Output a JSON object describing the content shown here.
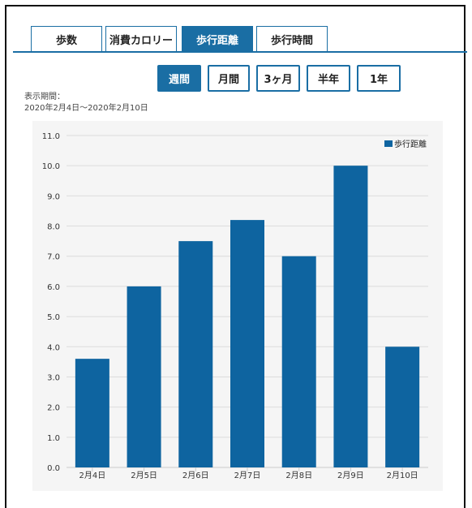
{
  "tabs": [
    {
      "label": "歩数",
      "active": false
    },
    {
      "label": "消費カロリー",
      "active": false
    },
    {
      "label": "歩行距離",
      "active": true
    },
    {
      "label": "歩行時間",
      "active": false
    }
  ],
  "periods": [
    {
      "label": "週間",
      "active": true
    },
    {
      "label": "月間",
      "active": false
    },
    {
      "label": "3ヶ月",
      "active": false
    },
    {
      "label": "半年",
      "active": false
    },
    {
      "label": "1年",
      "active": false
    }
  ],
  "display_period": {
    "label": "表示期間：",
    "range": "2020年2月4日～2020年2月10日"
  },
  "colors": {
    "accent": "#1a6ea4",
    "bar": "#0e64a0",
    "panel": "#f5f5f5"
  },
  "chart_data": {
    "type": "bar",
    "categories": [
      "2月4日",
      "2月5日",
      "2月6日",
      "2月7日",
      "2月8日",
      "2月9日",
      "2月10日"
    ],
    "series": [
      {
        "name": "歩行距離",
        "values": [
          3.6,
          6.0,
          7.5,
          8.2,
          7.0,
          10.0,
          4.0
        ]
      }
    ],
    "ylim": [
      0,
      11
    ],
    "yticks": [
      "0.0",
      "1.0",
      "2.0",
      "3.0",
      "4.0",
      "5.0",
      "6.0",
      "7.0",
      "8.0",
      "9.0",
      "10.0",
      "11.0"
    ],
    "grid": true,
    "legend": "top-right"
  }
}
